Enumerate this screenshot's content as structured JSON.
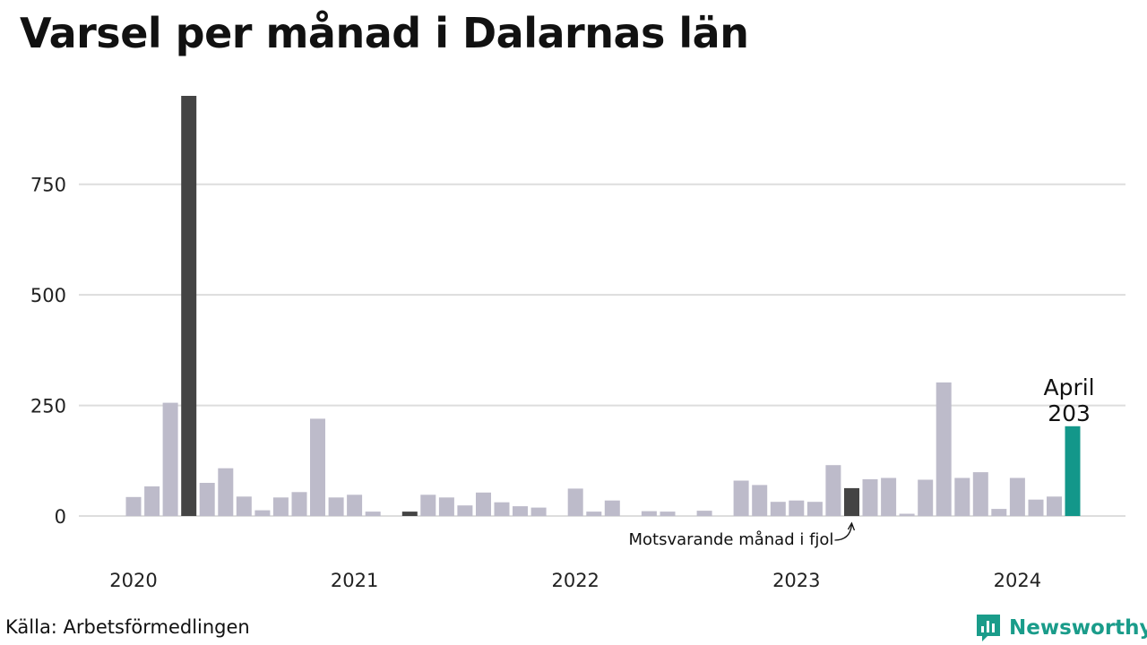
{
  "title": "Varsel per månad i Dalarnas län",
  "source": "Källa: Arbetsförmedlingen",
  "brand": "Newsworthy",
  "colors": {
    "bar": "#bdbbca",
    "same_month": "#444444",
    "latest": "#13978a",
    "grid": "#dddddd",
    "brand": "#1a9c8a"
  },
  "chart_data": {
    "type": "bar",
    "title": "Varsel per månad i Dalarnas län",
    "xlabel": "",
    "ylabel": "",
    "ylim": [
      0,
      950
    ],
    "y_ticks": [
      0,
      250,
      500,
      750
    ],
    "x_ticks": [
      "2020",
      "2021",
      "2022",
      "2023",
      "2024"
    ],
    "grid": true,
    "categories": [
      "2020-01",
      "2020-02",
      "2020-03",
      "2020-04",
      "2020-05",
      "2020-06",
      "2020-07",
      "2020-08",
      "2020-09",
      "2020-10",
      "2020-11",
      "2020-12",
      "2021-01",
      "2021-02",
      "2021-03",
      "2021-04",
      "2021-05",
      "2021-06",
      "2021-07",
      "2021-08",
      "2021-09",
      "2021-10",
      "2021-11",
      "2021-12",
      "2022-01",
      "2022-02",
      "2022-03",
      "2022-04",
      "2022-05",
      "2022-06",
      "2022-07",
      "2022-08",
      "2022-09",
      "2022-10",
      "2022-11",
      "2022-12",
      "2023-01",
      "2023-02",
      "2023-03",
      "2023-04",
      "2023-05",
      "2023-06",
      "2023-07",
      "2023-08",
      "2023-09",
      "2023-10",
      "2023-11",
      "2023-12",
      "2024-01",
      "2024-02",
      "2024-03",
      "2024-04"
    ],
    "values": [
      43,
      67,
      256,
      950,
      75,
      108,
      44,
      13,
      42,
      54,
      220,
      42,
      48,
      10,
      0,
      10,
      48,
      42,
      24,
      53,
      31,
      22,
      19,
      0,
      62,
      10,
      35,
      0,
      11,
      10,
      0,
      12,
      0,
      80,
      70,
      32,
      35,
      32,
      115,
      63,
      83,
      86,
      5,
      82,
      302,
      86,
      99,
      16,
      86,
      37,
      44,
      203
    ],
    "same_month_indices": [
      3,
      15,
      39
    ],
    "latest_index": 51,
    "annotations": {
      "same_month_last_year": "Motsvarande månad i fjol",
      "latest_month": "April",
      "latest_value": "203"
    }
  }
}
